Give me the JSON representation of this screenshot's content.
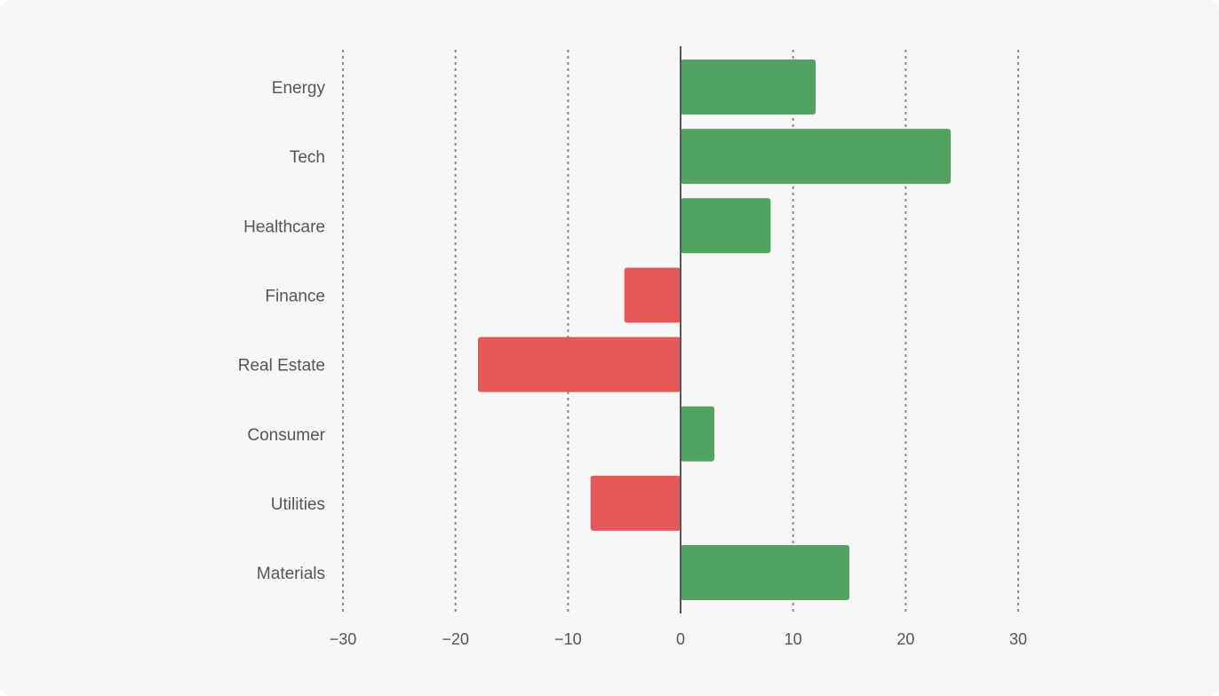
{
  "chart_data": {
    "type": "bar",
    "orientation": "horizontal",
    "categories": [
      "Energy",
      "Tech",
      "Healthcare",
      "Finance",
      "Real Estate",
      "Consumer",
      "Utilities",
      "Materials"
    ],
    "values": [
      12,
      24,
      8,
      -5,
      -18,
      3,
      -8,
      15
    ],
    "xlim": [
      -30,
      30
    ],
    "xticks": [
      -30,
      -20,
      -10,
      0,
      10,
      20,
      30
    ],
    "xtick_labels": [
      "−30",
      "−20",
      "−10",
      "0",
      "10",
      "20",
      "30"
    ],
    "grid": "vertical dotted",
    "legend": "none",
    "title": "",
    "xlabel": "",
    "ylabel": "",
    "colors": {
      "positive": "#52a260",
      "negative": "#e45858",
      "background": "#f7f7f7"
    }
  }
}
